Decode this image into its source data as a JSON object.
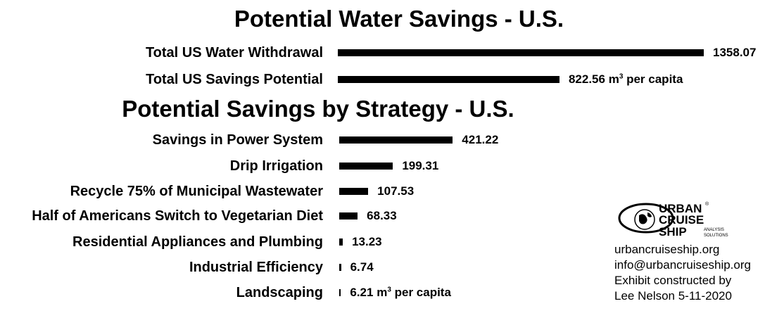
{
  "chart_data": [
    {
      "type": "bar",
      "title": "Potential Water Savings - U.S.",
      "categories": [
        "Total US Water Withdrawal",
        "Total US Savings Potential"
      ],
      "values": [
        1358.07,
        822.56
      ],
      "value_labels": [
        "1358.07",
        "822.56"
      ],
      "unit": "m³ per capita",
      "orientation": "horizontal",
      "grid": false
    },
    {
      "type": "bar",
      "title": "Potential Savings by Strategy - U.S.",
      "categories": [
        "Savings in Power System",
        "Drip Irrigation",
        "Recycle 75% of Municipal Wastewater",
        "Half of Americans Switch to Vegetarian Diet",
        "Residential Appliances and Plumbing",
        "Industrial Efficiency",
        "Landscaping"
      ],
      "values": [
        421.22,
        199.31,
        107.53,
        68.33,
        13.23,
        6.74,
        6.21
      ],
      "value_labels": [
        "421.22",
        "199.31",
        "107.53",
        "68.33",
        "13.23",
        "6.74",
        "6.21"
      ],
      "unit": "m³ per capita",
      "orientation": "horizontal",
      "grid": false
    }
  ],
  "unit_main": "m",
  "unit_sup": "3",
  "unit_rest": " per capita",
  "logo": {
    "line1": "URBAN",
    "line2": "CRUISE",
    "line3": "SHIP",
    "tag1": "ANALYSIS",
    "tag2": "SOLUTIONS",
    "reg": "®"
  },
  "info": {
    "website": "urbancruiseship.org",
    "email": "info@urbancruiseship.org",
    "credit1": "Exhibit constructed by",
    "credit2": "Lee Nelson 5-11-2020"
  }
}
